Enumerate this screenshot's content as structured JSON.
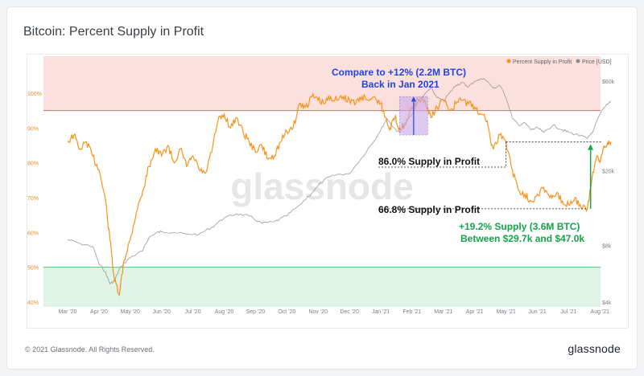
{
  "title": "Bitcoin: Percent Supply in Profit",
  "footer": {
    "copyright": "© 2021 Glassnode. All Rights Reserved.",
    "logo": "glassnode"
  },
  "watermark": "glassnode",
  "colors": {
    "supply_line": "#f7931a",
    "price_line": "#9a9a9a",
    "upper_band": "#fbd5d3",
    "upper_line": "#e06a61",
    "lower_band": "#d9f2e3",
    "lower_line": "#57c07e",
    "annotation_blue": "#1e44e6",
    "annotation_green": "#16a34a",
    "highlight_box": "#c9a8e8"
  },
  "annotations": {
    "compare_line1": "Compare to +12% (2.2M BTC)",
    "compare_line2": "Back in Jan 2021",
    "level_high": "86.0% Supply in Profit",
    "level_low": "66.8% Supply in Profit",
    "gain_line1": "+19.2% Supply (3.6M BTC)",
    "gain_line2": "Between $29.7k and $47.0k"
  },
  "chart_data": {
    "type": "line",
    "title": "Bitcoin: Percent Supply in Profit",
    "legend": {
      "placement": "top-right",
      "entries": [
        "Percent Supply in Profit",
        "Price [USD]"
      ]
    },
    "x_ticks": [
      "Mar '20",
      "Apr '20",
      "May '20",
      "Jun '20",
      "Jul '20",
      "Aug '20",
      "Sep '20",
      "Oct '20",
      "Nov '20",
      "Dec '20",
      "Jan '21",
      "Feb '21",
      "Mar '21",
      "Apr '21",
      "May '21",
      "Jun '21",
      "Jul '21",
      "Aug '21"
    ],
    "y_left": {
      "ticks": [
        "40%",
        "50%",
        "60%",
        "70%",
        "80%",
        "90%",
        "100%"
      ],
      "range": [
        40,
        100
      ]
    },
    "y_right": {
      "ticks": [
        "$4k",
        "$8k",
        "$20k",
        "$60k"
      ],
      "scale": "log",
      "range": [
        4000,
        60000
      ]
    },
    "bands": {
      "upper_threshold": 95,
      "lower_threshold": 50
    },
    "series": [
      {
        "name": "Percent Supply in Profit",
        "axis": "left",
        "points": [
          [
            0.0,
            86
          ],
          [
            0.2,
            88
          ],
          [
            0.4,
            84
          ],
          [
            0.6,
            86
          ],
          [
            0.8,
            82
          ],
          [
            1.0,
            78
          ],
          [
            1.2,
            70
          ],
          [
            1.35,
            58
          ],
          [
            1.5,
            46
          ],
          [
            1.65,
            42
          ],
          [
            1.8,
            52
          ],
          [
            2.0,
            58
          ],
          [
            2.2,
            66
          ],
          [
            2.4,
            72
          ],
          [
            2.6,
            79
          ],
          [
            2.8,
            84
          ],
          [
            3.0,
            82
          ],
          [
            3.2,
            85
          ],
          [
            3.4,
            80
          ],
          [
            3.6,
            84
          ],
          [
            3.8,
            79
          ],
          [
            4.0,
            82
          ],
          [
            4.2,
            78
          ],
          [
            4.4,
            77
          ],
          [
            4.6,
            83
          ],
          [
            4.8,
            92
          ],
          [
            5.0,
            94
          ],
          [
            5.2,
            90
          ],
          [
            5.4,
            93
          ],
          [
            5.6,
            89
          ],
          [
            5.8,
            86
          ],
          [
            6.0,
            83
          ],
          [
            6.2,
            85
          ],
          [
            6.4,
            81
          ],
          [
            6.6,
            82
          ],
          [
            6.8,
            86
          ],
          [
            7.0,
            89
          ],
          [
            7.2,
            90
          ],
          [
            7.4,
            97
          ],
          [
            7.6,
            96
          ],
          [
            7.8,
            99
          ],
          [
            8.0,
            98
          ],
          [
            8.2,
            97
          ],
          [
            8.4,
            99
          ],
          [
            8.6,
            98
          ],
          [
            8.8,
            99
          ],
          [
            9.0,
            98
          ],
          [
            9.2,
            97
          ],
          [
            9.4,
            99
          ],
          [
            9.6,
            98
          ],
          [
            9.8,
            99
          ],
          [
            10.0,
            97
          ],
          [
            10.15,
            93
          ],
          [
            10.3,
            90
          ],
          [
            10.45,
            93
          ],
          [
            10.6,
            90
          ],
          [
            10.8,
            91
          ],
          [
            11.0,
            96
          ],
          [
            11.2,
            98
          ],
          [
            11.4,
            98
          ],
          [
            11.6,
            93
          ],
          [
            11.8,
            96
          ],
          [
            12.0,
            98
          ],
          [
            12.2,
            95
          ],
          [
            12.4,
            97
          ],
          [
            12.6,
            98
          ],
          [
            12.8,
            97
          ],
          [
            13.0,
            96
          ],
          [
            13.2,
            94
          ],
          [
            13.4,
            92
          ],
          [
            13.5,
            87
          ],
          [
            13.6,
            84
          ],
          [
            13.8,
            88
          ],
          [
            14.0,
            86
          ],
          [
            14.2,
            78
          ],
          [
            14.4,
            72
          ],
          [
            14.6,
            71
          ],
          [
            14.8,
            69
          ],
          [
            15.0,
            71
          ],
          [
            15.2,
            73
          ],
          [
            15.4,
            70
          ],
          [
            15.6,
            71
          ],
          [
            15.8,
            69
          ],
          [
            16.0,
            68
          ],
          [
            16.2,
            70
          ],
          [
            16.4,
            67
          ],
          [
            16.6,
            66.8
          ],
          [
            16.75,
            76
          ],
          [
            16.9,
            82
          ],
          [
            17.0,
            80
          ],
          [
            17.1,
            84
          ],
          [
            17.25,
            86
          ],
          [
            17.35,
            86
          ]
        ]
      },
      {
        "name": "Price [USD]",
        "axis": "right",
        "points": [
          [
            0.0,
            8600
          ],
          [
            0.4,
            8200
          ],
          [
            0.8,
            7900
          ],
          [
            1.0,
            6400
          ],
          [
            1.2,
            5800
          ],
          [
            1.35,
            5000
          ],
          [
            1.5,
            5200
          ],
          [
            1.7,
            6200
          ],
          [
            2.0,
            6900
          ],
          [
            2.4,
            7500
          ],
          [
            2.6,
            8800
          ],
          [
            2.8,
            9300
          ],
          [
            3.0,
            9500
          ],
          [
            3.4,
            9400
          ],
          [
            3.8,
            9200
          ],
          [
            4.2,
            9200
          ],
          [
            4.6,
            10000
          ],
          [
            5.0,
            11200
          ],
          [
            5.4,
            11800
          ],
          [
            5.8,
            11500
          ],
          [
            6.2,
            10500
          ],
          [
            6.6,
            10700
          ],
          [
            7.0,
            11500
          ],
          [
            7.4,
            13100
          ],
          [
            7.8,
            15200
          ],
          [
            8.2,
            18000
          ],
          [
            8.6,
            19100
          ],
          [
            9.0,
            19300
          ],
          [
            9.4,
            23500
          ],
          [
            9.8,
            29000
          ],
          [
            10.0,
            33000
          ],
          [
            10.2,
            38000
          ],
          [
            10.4,
            34000
          ],
          [
            10.6,
            32000
          ],
          [
            10.8,
            36000
          ],
          [
            11.0,
            40000
          ],
          [
            11.2,
            47000
          ],
          [
            11.4,
            51000
          ],
          [
            11.6,
            55000
          ],
          [
            11.8,
            49000
          ],
          [
            12.0,
            47000
          ],
          [
            12.2,
            52000
          ],
          [
            12.4,
            57000
          ],
          [
            12.6,
            59000
          ],
          [
            12.8,
            56000
          ],
          [
            13.0,
            60000
          ],
          [
            13.3,
            62000
          ],
          [
            13.6,
            55000
          ],
          [
            13.8,
            57000
          ],
          [
            14.0,
            49000
          ],
          [
            14.2,
            38000
          ],
          [
            14.4,
            35000
          ],
          [
            14.6,
            36000
          ],
          [
            14.8,
            33000
          ],
          [
            15.0,
            34000
          ],
          [
            15.2,
            32000
          ],
          [
            15.5,
            35000
          ],
          [
            15.8,
            33000
          ],
          [
            16.0,
            32000
          ],
          [
            16.3,
            31000
          ],
          [
            16.6,
            29700
          ],
          [
            16.8,
            33000
          ],
          [
            17.0,
            40000
          ],
          [
            17.2,
            45000
          ],
          [
            17.35,
            47000
          ]
        ]
      }
    ]
  }
}
